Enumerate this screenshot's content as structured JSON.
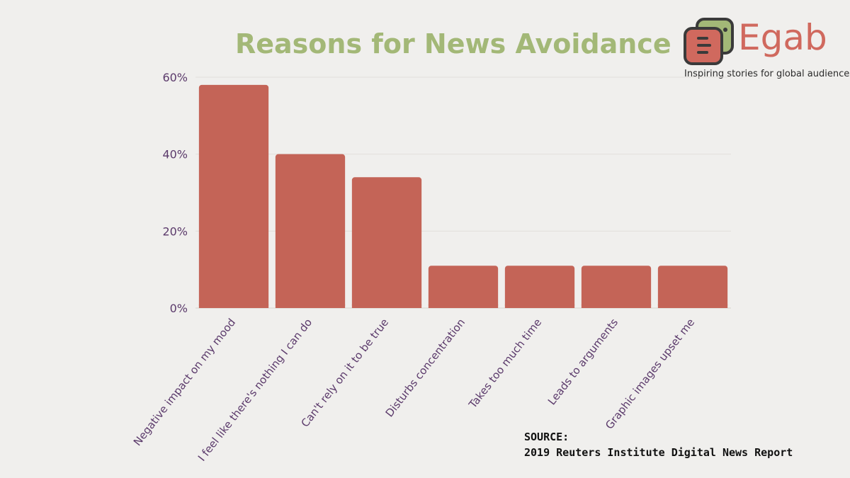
{
  "brand": {
    "name": "Egab",
    "tagline": "Inspiring stories for global audiences",
    "colors": {
      "red": "#d0695e",
      "green": "#a3b877",
      "dark": "#3a3a3a"
    }
  },
  "source": {
    "label": "SOURCE:",
    "text": "2019 Reuters Institute Digital News Report"
  },
  "chart_data": {
    "type": "bar",
    "title": "Reasons for News Avoidance",
    "xlabel": "",
    "ylabel": "",
    "categories": [
      "Negative impact on my mood",
      "I feel like there's nothing I can do",
      "Can't rely on it to be true",
      "Disturbs concentration",
      "Takes too much time",
      "Leads to arguments",
      "Graphic images upset me"
    ],
    "values": [
      58,
      40,
      34,
      11,
      11,
      11,
      11
    ],
    "ylim": [
      0,
      60
    ],
    "yticks": [
      0,
      20,
      40,
      60
    ],
    "ytick_labels": [
      "0%",
      "20%",
      "40%",
      "60%"
    ],
    "grid": true,
    "bar_color": "#c46457",
    "title_color": "#a3b877",
    "label_color": "#5b3a6b"
  }
}
